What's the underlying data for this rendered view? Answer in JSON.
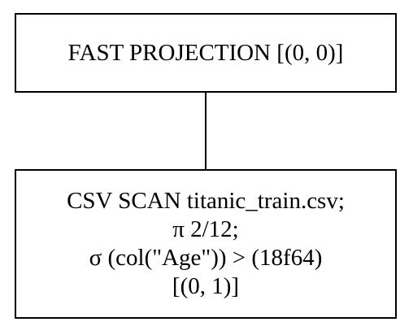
{
  "nodes": {
    "root": {
      "label": "FAST PROJECTION [(0, 0)]"
    },
    "scan": {
      "lines": [
        "CSV SCAN titanic_train.csv;",
        "π 2/12;",
        "σ (col(\"Age\")) > (18f64)",
        "[(0, 1)]"
      ]
    }
  },
  "edges": [
    {
      "from": "root",
      "to": "scan"
    }
  ]
}
